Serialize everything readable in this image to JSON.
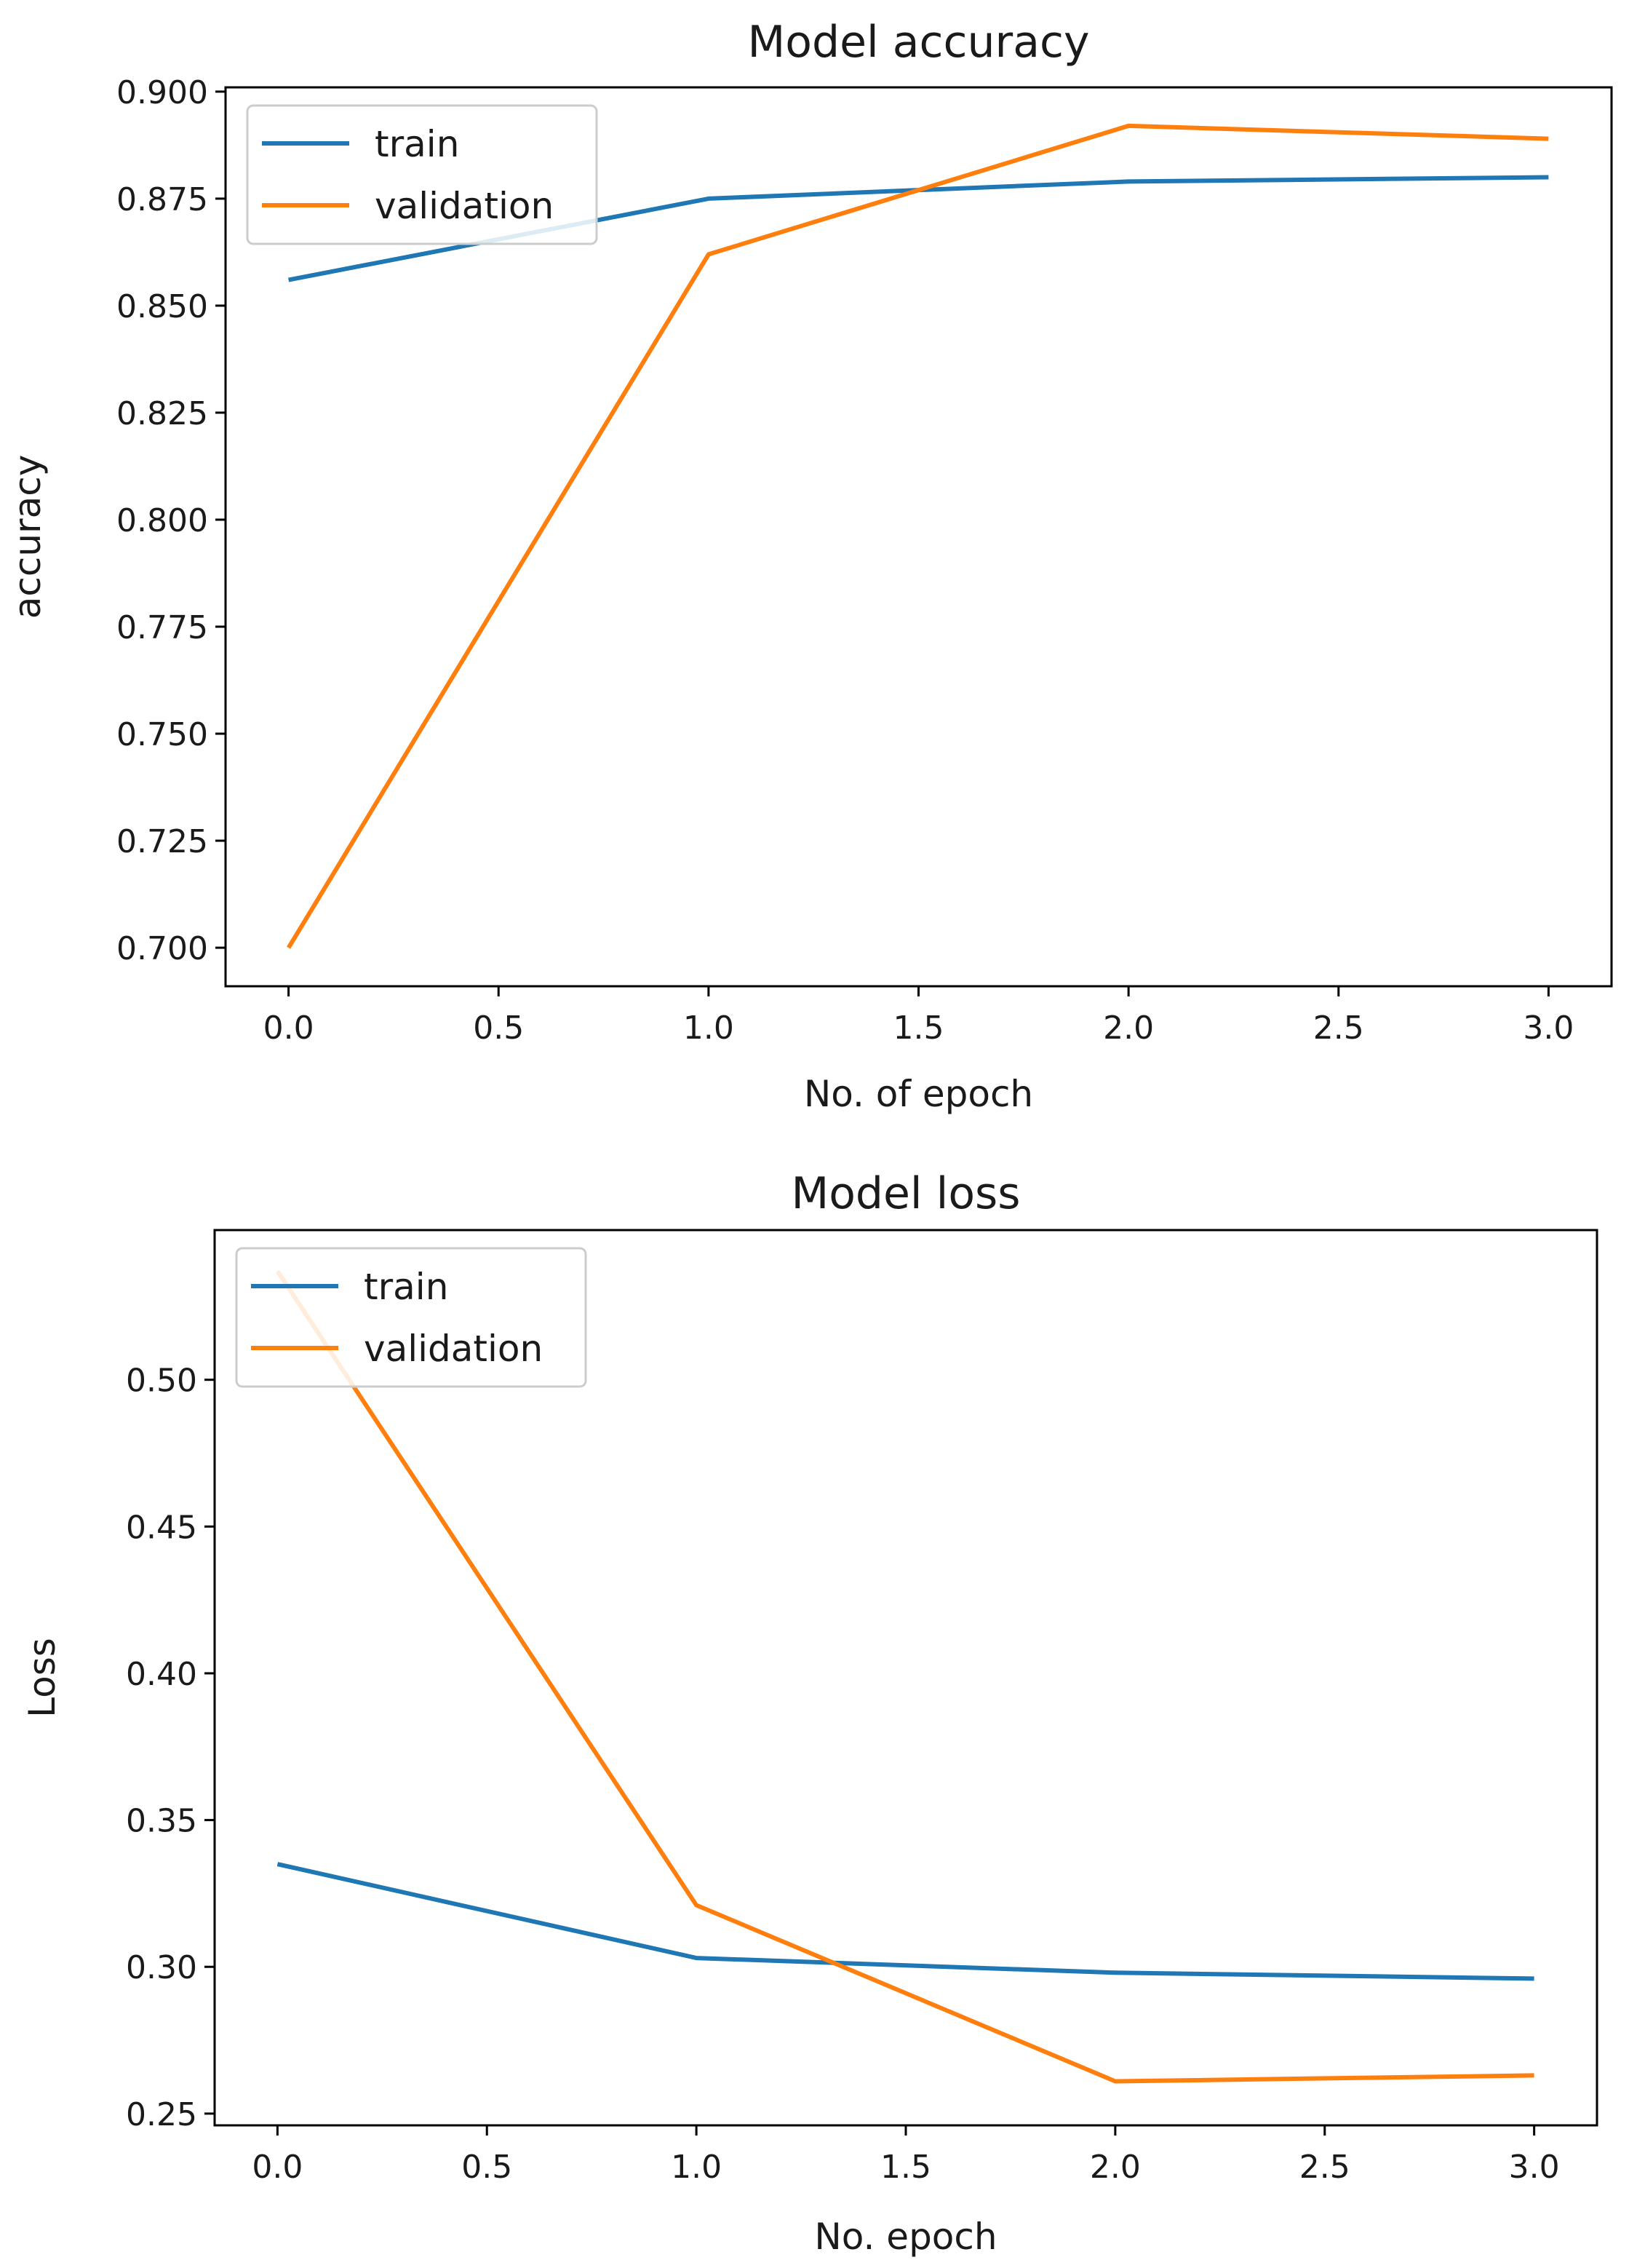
{
  "chart_data": [
    {
      "type": "line",
      "title": "Model accuracy",
      "xlabel": "No. of epoch",
      "ylabel": "accuracy",
      "x": [
        0,
        1,
        2,
        3
      ],
      "xlim": [
        -0.15,
        3.15
      ],
      "ylim": [
        0.691,
        0.901
      ],
      "xticks": [
        0.0,
        0.5,
        1.0,
        1.5,
        2.0,
        2.5,
        3.0
      ],
      "xtick_labels": [
        "0.0",
        "0.5",
        "1.0",
        "1.5",
        "2.0",
        "2.5",
        "3.0"
      ],
      "yticks": [
        0.7,
        0.725,
        0.75,
        0.775,
        0.8,
        0.825,
        0.85,
        0.875,
        0.9
      ],
      "ytick_labels": [
        "0.700",
        "0.725",
        "0.750",
        "0.775",
        "0.800",
        "0.825",
        "0.850",
        "0.875",
        "0.900"
      ],
      "legend_position": "top-left",
      "series": [
        {
          "name": "train",
          "color": "#1f77b4",
          "values": [
            0.856,
            0.875,
            0.879,
            0.88
          ]
        },
        {
          "name": "validation",
          "color": "#ff7f0e",
          "values": [
            0.7,
            0.862,
            0.892,
            0.889
          ]
        }
      ]
    },
    {
      "type": "line",
      "title": "Model loss",
      "xlabel": "No. epoch",
      "ylabel": "Loss",
      "x": [
        0,
        1,
        2,
        3
      ],
      "xlim": [
        -0.15,
        3.15
      ],
      "ylim": [
        0.246,
        0.551
      ],
      "xticks": [
        0.0,
        0.5,
        1.0,
        1.5,
        2.0,
        2.5,
        3.0
      ],
      "xtick_labels": [
        "0.0",
        "0.5",
        "1.0",
        "1.5",
        "2.0",
        "2.5",
        "3.0"
      ],
      "yticks": [
        0.25,
        0.3,
        0.35,
        0.4,
        0.45,
        0.5
      ],
      "ytick_labels": [
        "0.25",
        "0.30",
        "0.35",
        "0.40",
        "0.45",
        "0.50"
      ],
      "legend_position": "top-left",
      "series": [
        {
          "name": "train",
          "color": "#1f77b4",
          "values": [
            0.335,
            0.303,
            0.298,
            0.296
          ]
        },
        {
          "name": "validation",
          "color": "#ff7f0e",
          "values": [
            0.537,
            0.321,
            0.261,
            0.263
          ]
        }
      ]
    }
  ]
}
